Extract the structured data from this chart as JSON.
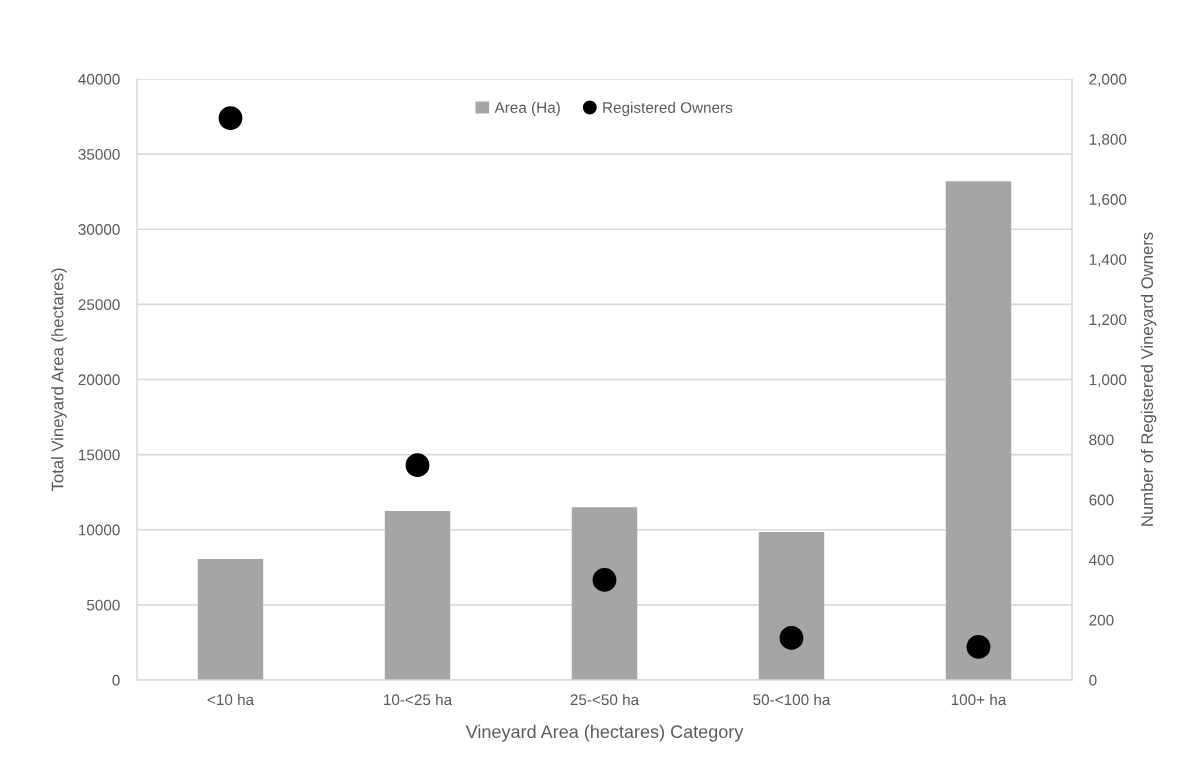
{
  "chart_data": {
    "type": "bar",
    "xlabel": "Vineyard Area (hectares) Category",
    "ylabel": "Total Vineyard Area (hectares)",
    "y2label": "Number of Registered Vineyard Owners",
    "categories": [
      "<10 ha",
      "10-<25 ha",
      "25-<50 ha",
      "50-<100 ha",
      "100+ ha"
    ],
    "series": [
      {
        "name": "Area (Ha)",
        "color": "#a5a5a5",
        "values": [
          8050,
          11250,
          11500,
          9850,
          33200
        ]
      },
      {
        "name": "Registered Owners",
        "type": "scatter",
        "axis": "y2",
        "color": "#000000",
        "marker": "circle",
        "values": [
          1870,
          715,
          333,
          140,
          110
        ]
      }
    ],
    "ylim": [
      0,
      40000
    ],
    "yticks": [
      0,
      5000,
      10000,
      15000,
      20000,
      25000,
      30000,
      35000,
      40000
    ],
    "y2lim": [
      0,
      2000
    ],
    "y2ticks": [
      {
        "value": 0,
        "label": "0"
      },
      {
        "value": 200,
        "label": "200"
      },
      {
        "value": 400,
        "label": "400"
      },
      {
        "value": 600,
        "label": "600"
      },
      {
        "value": 800,
        "label": "800"
      },
      {
        "value": 1000,
        "label": "1,000"
      },
      {
        "value": 1200,
        "label": "1,200"
      },
      {
        "value": 1400,
        "label": "1,400"
      },
      {
        "value": 1600,
        "label": "1,600"
      },
      {
        "value": 1800,
        "label": "1,800"
      },
      {
        "value": 2000,
        "label": "2,000"
      }
    ],
    "grid": "y",
    "legend": "top"
  }
}
